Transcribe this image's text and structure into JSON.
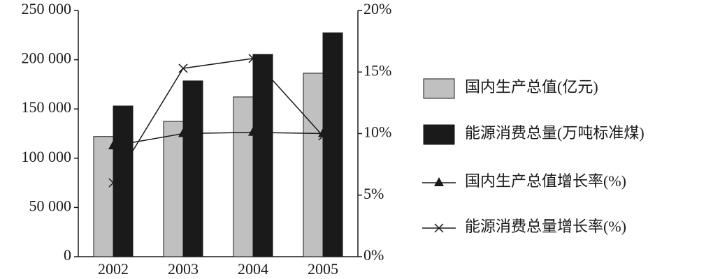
{
  "chart_data": {
    "type": "bar",
    "categories": [
      "2002",
      "2003",
      "2004",
      "2005"
    ],
    "series": [
      {
        "name": "国内生产总值(亿元)",
        "type": "bar",
        "color": "#c0c0c0",
        "values": [
          122000,
          137400,
          162200,
          186300
        ]
      },
      {
        "name": "能源消费总量(万吨标准煤)",
        "type": "bar",
        "color": "#1a1a1a",
        "values": [
          153000,
          178500,
          205400,
          227300
        ]
      },
      {
        "name": "国内生产总值增长率(%)",
        "type": "line",
        "axis": "y2",
        "marker": "triangle",
        "color": "#1a1a1a",
        "values": [
          9.0,
          10.0,
          10.1,
          10.0
        ]
      },
      {
        "name": "能源消费总量增长率(%)",
        "type": "line",
        "axis": "y2",
        "marker": "x",
        "color": "#1a1a1a",
        "values": [
          6.0,
          15.3,
          16.1,
          9.8
        ]
      }
    ],
    "ylim": [
      0,
      250000
    ],
    "yticks": [
      0,
      {
        "value": 50000,
        "label": "50 000"
      },
      {
        "value": 100000,
        "label": "100 000"
      },
      {
        "value": 150000,
        "label": "150 000"
      },
      {
        "value": 200000,
        "label": "200 000"
      },
      {
        "value": 250000,
        "label": "250 000"
      }
    ],
    "y2lim": [
      0,
      20
    ],
    "y2ticks": [
      {
        "value": 0,
        "label": "0%"
      },
      {
        "value": 5,
        "label": "5%"
      },
      {
        "value": 10,
        "label": "10%"
      },
      {
        "value": 15,
        "label": "15%"
      },
      {
        "value": 20,
        "label": "20%"
      }
    ],
    "grid": false,
    "legend": "right"
  }
}
